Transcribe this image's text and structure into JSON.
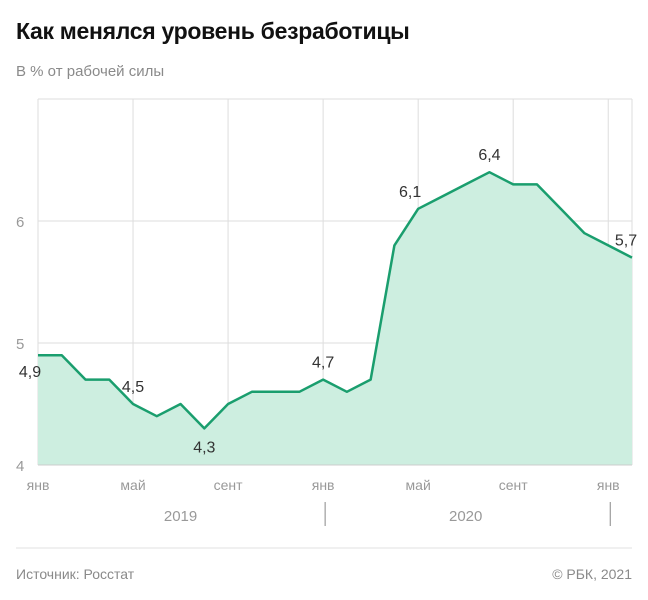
{
  "header": {
    "title": "Как менялся уровень безработицы",
    "subtitle": "В % от рабочей силы"
  },
  "footer": {
    "source": "Источник: Росстат",
    "copyright": "© РБК, 2021"
  },
  "colors": {
    "line": "#1a9e6e",
    "fill": "#cdeee0",
    "grid": "#dddddd"
  },
  "chart_data": {
    "type": "area",
    "title": "Как менялся уровень безработицы",
    "subtitle": "В % от рабочей силы",
    "x": [
      "2019-01",
      "2019-02",
      "2019-03",
      "2019-04",
      "2019-05",
      "2019-06",
      "2019-07",
      "2019-08",
      "2019-09",
      "2019-10",
      "2019-11",
      "2019-12",
      "2020-01",
      "2020-02",
      "2020-03",
      "2020-04",
      "2020-05",
      "2020-06",
      "2020-07",
      "2020-08",
      "2020-09",
      "2020-10",
      "2020-11",
      "2020-12",
      "2021-01",
      "2021-02"
    ],
    "values": [
      4.9,
      4.9,
      4.7,
      4.7,
      4.5,
      4.4,
      4.5,
      4.3,
      4.5,
      4.6,
      4.6,
      4.6,
      4.7,
      4.6,
      4.7,
      5.8,
      6.1,
      6.2,
      6.3,
      6.4,
      6.3,
      6.3,
      6.1,
      5.9,
      5.8,
      5.7
    ],
    "ylim": [
      4,
      7
    ],
    "yticks": [
      "4",
      "5",
      "6"
    ],
    "xticks": [
      {
        "index": 0,
        "label": "янв"
      },
      {
        "index": 4,
        "label": "май"
      },
      {
        "index": 8,
        "label": "сент"
      },
      {
        "index": 12,
        "label": "янв"
      },
      {
        "index": 16,
        "label": "май"
      },
      {
        "index": 20,
        "label": "сент"
      },
      {
        "index": 24,
        "label": "янв"
      }
    ],
    "years": [
      {
        "label": "2019",
        "from": 0,
        "to": 12
      },
      {
        "label": "2020",
        "from": 12,
        "to": 24
      }
    ],
    "data_labels": [
      {
        "index": 0,
        "label": "4,9"
      },
      {
        "index": 4,
        "label": "4,5"
      },
      {
        "index": 7,
        "label": "4,3"
      },
      {
        "index": 12,
        "label": "4,7"
      },
      {
        "index": 16,
        "label": "6,1"
      },
      {
        "index": 19,
        "label": "6,4"
      },
      {
        "index": 25,
        "label": "5,7"
      }
    ],
    "grid": true
  }
}
